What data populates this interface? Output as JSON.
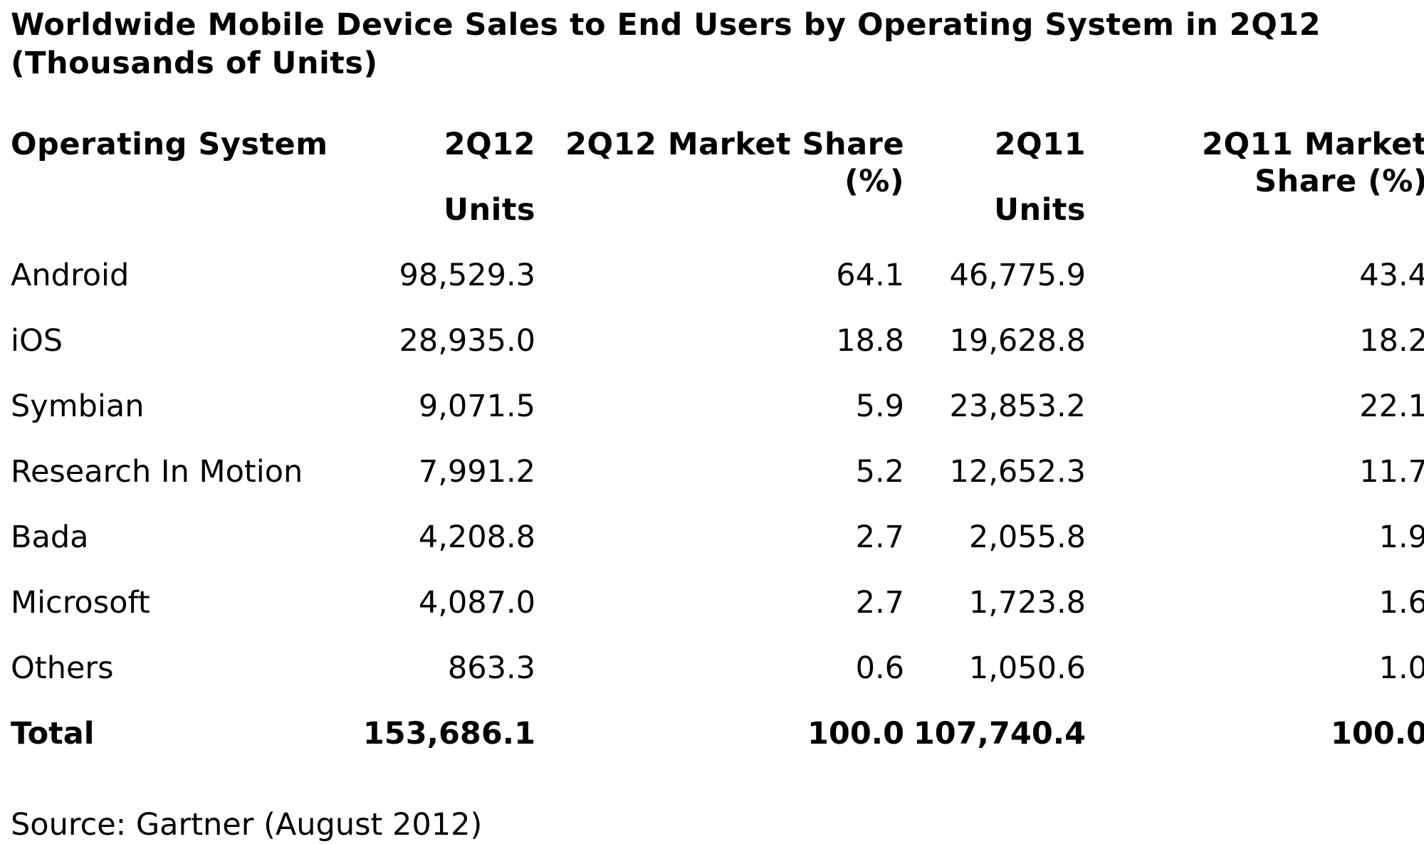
{
  "title": {
    "line1": "Worldwide Mobile Device Sales to End Users by Operating System in 2Q12",
    "line2": "(Thousands of Units)"
  },
  "headers": {
    "os": "Operating System",
    "q212_units_line1": "2Q12",
    "q212_units_line2": "Units",
    "q212_share_line1": "2Q12 Market Share",
    "q212_share_line2": "(%)",
    "q211_units_line1": "2Q11",
    "q211_units_line2": "Units",
    "q211_share_line1": "2Q11 Market",
    "q211_share_line2": "Share (%)"
  },
  "rows": [
    {
      "os": "Android",
      "u2q12": "98,529.3",
      "s2q12": "64.1",
      "u2q11": "46,775.9",
      "s2q11": "43.4"
    },
    {
      "os": "iOS",
      "u2q12": "28,935.0",
      "s2q12": "18.8",
      "u2q11": "19,628.8",
      "s2q11": "18.2"
    },
    {
      "os": "Symbian",
      "u2q12": "9,071.5",
      "s2q12": "5.9",
      "u2q11": "23,853.2",
      "s2q11": "22.1"
    },
    {
      "os": "Research In Motion",
      "u2q12": "7,991.2",
      "s2q12": "5.2",
      "u2q11": "12,652.3",
      "s2q11": "11.7"
    },
    {
      "os": "Bada",
      "u2q12": "4,208.8",
      "s2q12": "2.7",
      "u2q11": "2,055.8",
      "s2q11": "1.9"
    },
    {
      "os": "Microsoft",
      "u2q12": "4,087.0",
      "s2q12": "2.7",
      "u2q11": "1,723.8",
      "s2q11": "1.6"
    },
    {
      "os": "Others",
      "u2q12": "863.3",
      "s2q12": "0.6",
      "u2q11": "1,050.6",
      "s2q11": "1.0"
    }
  ],
  "total": {
    "os": "Total",
    "u2q12": "153,686.1",
    "s2q12": "100.0",
    "u2q11": "107,740.4",
    "s2q11": "100.0"
  },
  "source": "Source: Gartner (August 2012)",
  "chart_data": {
    "type": "table",
    "title": "Worldwide Mobile Device Sales to End Users by Operating System in 2Q12 (Thousands of Units)",
    "columns": [
      "Operating System",
      "2Q12 Units",
      "2Q12 Market Share (%)",
      "2Q11 Units",
      "2Q11 Market Share (%)"
    ],
    "rows": [
      [
        "Android",
        98529.3,
        64.1,
        46775.9,
        43.4
      ],
      [
        "iOS",
        28935.0,
        18.8,
        19628.8,
        18.2
      ],
      [
        "Symbian",
        9071.5,
        5.9,
        23853.2,
        22.1
      ],
      [
        "Research In Motion",
        7991.2,
        5.2,
        12652.3,
        11.7
      ],
      [
        "Bada",
        4208.8,
        2.7,
        2055.8,
        1.9
      ],
      [
        "Microsoft",
        4087.0,
        2.7,
        1723.8,
        1.6
      ],
      [
        "Others",
        863.3,
        0.6,
        1050.6,
        1.0
      ],
      [
        "Total",
        153686.1,
        100.0,
        107740.4,
        100.0
      ]
    ]
  }
}
